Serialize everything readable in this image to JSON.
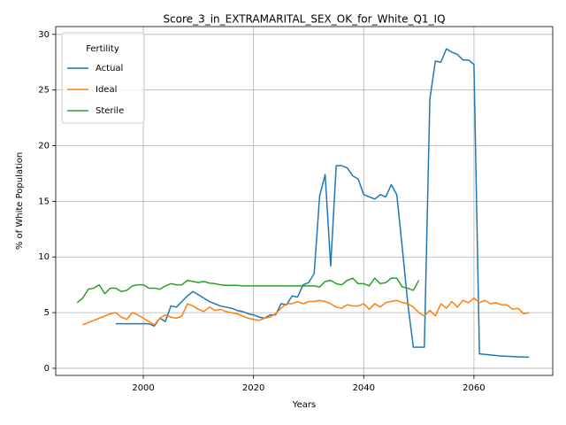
{
  "chart_data": {
    "type": "line",
    "title": "Score_3_in_EXTRAMARITAL_SEX_OK_for_White_Q1_IQ",
    "xlabel": "Years",
    "ylabel": "% of White Population",
    "legend_title": "Fertility",
    "legend": "upper left",
    "grid": true,
    "x": [
      1988,
      1989,
      1990,
      1991,
      1992,
      1993,
      1994,
      1995,
      1996,
      1997,
      1998,
      1999,
      2000,
      2001,
      2002,
      2003,
      2004,
      2005,
      2006,
      2007,
      2008,
      2009,
      2010,
      2011,
      2012,
      2013,
      2014,
      2015,
      2016,
      2017,
      2018,
      2019,
      2020,
      2021,
      2022,
      2023,
      2024,
      2025,
      2026,
      2027,
      2028,
      2029,
      2030,
      2031,
      2032,
      2033,
      2034,
      2035,
      2036,
      2037,
      2038,
      2039,
      2040,
      2041,
      2042,
      2043,
      2044,
      2045,
      2046,
      2047,
      2048,
      2049,
      2050,
      2051,
      2052,
      2053,
      2054,
      2055,
      2056,
      2057,
      2058,
      2059,
      2060,
      2061,
      2062,
      2063,
      2064,
      2065,
      2066,
      2067,
      2068,
      2069,
      2070
    ],
    "series": [
      {
        "name": "Actual",
        "color": "#1f77b4",
        "values": [
          null,
          null,
          null,
          null,
          null,
          null,
          null,
          4.0,
          4.0,
          4.0,
          4.0,
          4.0,
          4.0,
          4.0,
          3.8,
          4.5,
          4.2,
          5.6,
          5.5,
          6.0,
          6.5,
          6.9,
          6.6,
          6.3,
          6.0,
          5.8,
          5.6,
          5.5,
          5.4,
          5.2,
          5.1,
          4.9,
          4.8,
          4.6,
          4.5,
          4.8,
          4.8,
          5.8,
          5.7,
          6.5,
          6.4,
          7.5,
          7.7,
          8.5,
          15.5,
          17.4,
          9.2,
          18.2,
          18.2,
          18.0,
          17.3,
          17.0,
          15.6,
          15.4,
          15.2,
          15.6,
          15.4,
          16.5,
          15.6,
          10.8,
          5.8,
          1.9,
          1.9,
          1.9,
          24.2,
          27.6,
          27.5,
          28.7,
          28.4,
          28.2,
          27.7,
          27.7,
          27.3,
          1.3,
          1.25,
          1.2,
          1.15,
          1.1,
          1.08,
          1.05,
          1.03,
          1.01,
          1.0
        ]
      },
      {
        "name": "Ideal",
        "color": "#ff7f0e",
        "values": [
          null,
          3.9,
          4.1,
          4.3,
          4.5,
          4.7,
          4.9,
          5.0,
          4.6,
          4.4,
          5.0,
          4.8,
          4.5,
          4.2,
          3.9,
          4.5,
          4.8,
          4.6,
          4.5,
          4.7,
          5.8,
          5.6,
          5.3,
          5.1,
          5.5,
          5.2,
          5.3,
          5.1,
          5.0,
          4.9,
          4.7,
          4.5,
          4.4,
          4.3,
          4.5,
          4.6,
          4.9,
          5.4,
          5.8,
          5.8,
          6.0,
          5.8,
          6.0,
          6.0,
          6.1,
          6.0,
          5.8,
          5.5,
          5.4,
          5.7,
          5.6,
          5.6,
          5.8,
          5.3,
          5.8,
          5.5,
          5.9,
          6.0,
          6.1,
          5.9,
          5.8,
          5.5,
          5.0,
          4.7,
          5.2,
          4.7,
          5.8,
          5.4,
          6.0,
          5.5,
          6.1,
          5.9,
          6.3,
          5.9,
          6.1,
          5.8,
          5.9,
          5.7,
          5.7,
          5.3,
          5.4,
          4.9,
          5.0
        ]
      },
      {
        "name": "Sterile",
        "color": "#2ca02c",
        "values": [
          5.9,
          6.3,
          7.1,
          7.2,
          7.5,
          6.7,
          7.2,
          7.2,
          6.9,
          7.0,
          7.4,
          7.5,
          7.5,
          7.2,
          7.2,
          7.1,
          7.4,
          7.6,
          7.5,
          7.5,
          7.9,
          7.8,
          7.7,
          7.8,
          7.65,
          7.6,
          7.5,
          7.45,
          7.45,
          7.45,
          7.4,
          7.4,
          7.4,
          7.4,
          7.4,
          7.4,
          7.4,
          7.4,
          7.4,
          7.4,
          7.4,
          7.4,
          7.4,
          7.4,
          7.3,
          7.8,
          7.9,
          7.6,
          7.5,
          7.9,
          8.1,
          7.6,
          7.6,
          7.4,
          8.1,
          7.6,
          7.7,
          8.1,
          8.1,
          7.3,
          7.2,
          7.0,
          7.9,
          null,
          null,
          null,
          null,
          null,
          null,
          null,
          null,
          null,
          null,
          null,
          null,
          null,
          null,
          null,
          null,
          null,
          null,
          null,
          null
        ]
      }
    ],
    "xlim": [
      1984.1,
      2074.3
    ],
    "xticks": [
      2000,
      2020,
      2040,
      2060
    ],
    "ylim": [
      -0.64,
      30.7
    ],
    "yticks": [
      0,
      5,
      10,
      15,
      20,
      25,
      30
    ]
  }
}
